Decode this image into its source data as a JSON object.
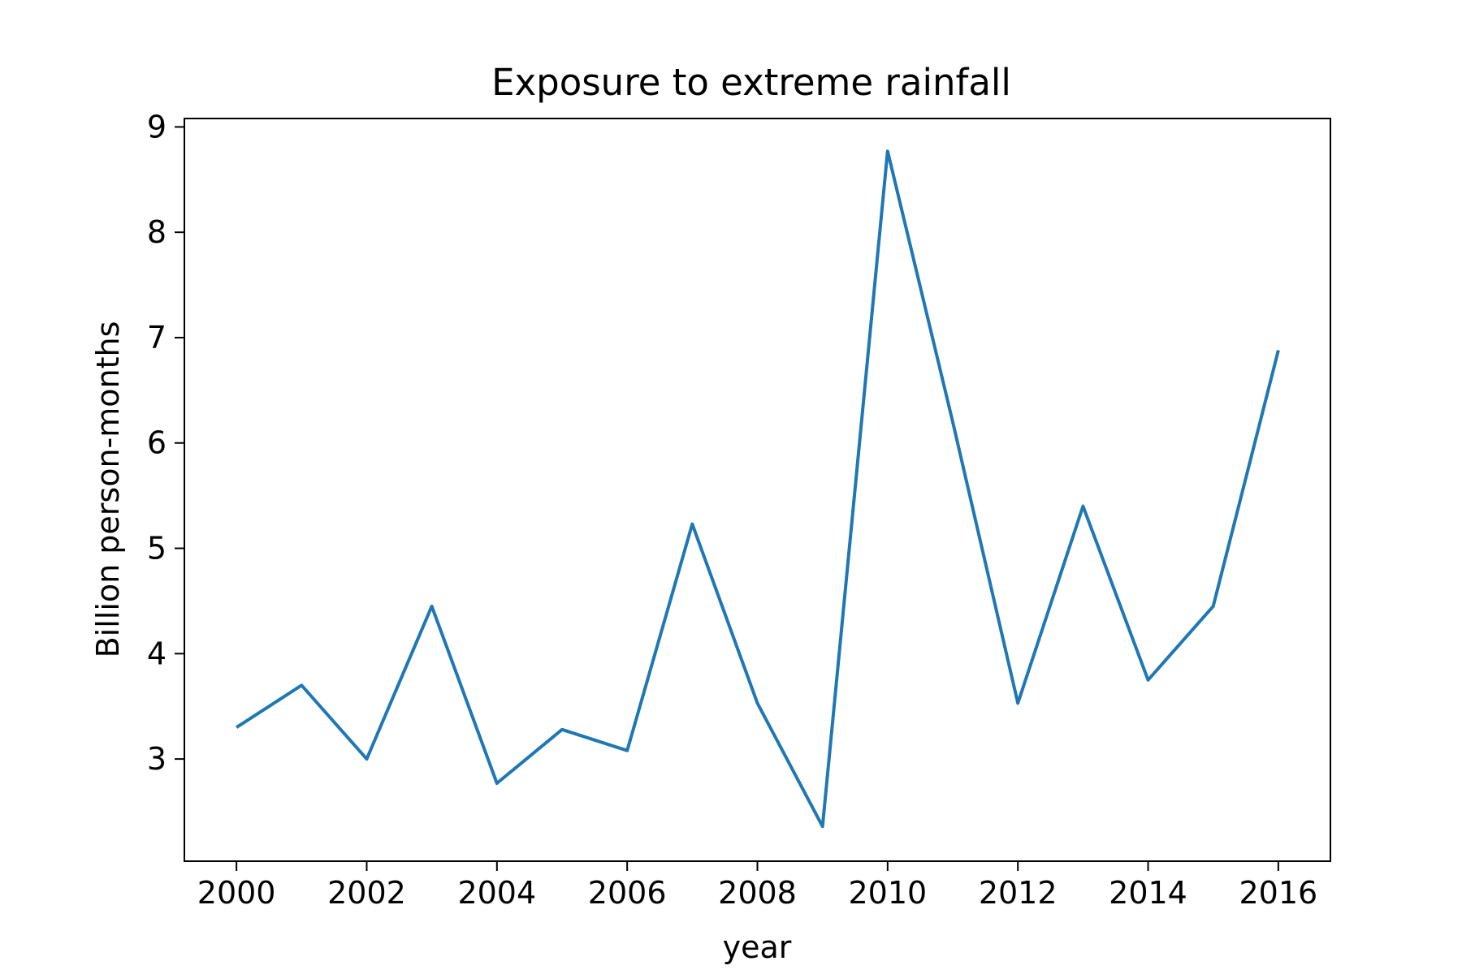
{
  "chart_data": {
    "type": "line",
    "title": "Exposure to extreme rainfall",
    "xlabel": "year",
    "ylabel": "Billion person-months",
    "x": [
      2000,
      2001,
      2002,
      2003,
      2004,
      2005,
      2006,
      2007,
      2008,
      2009,
      2010,
      2011,
      2012,
      2013,
      2014,
      2015,
      2016
    ],
    "series": [
      {
        "values": [
          3.3,
          3.7,
          3.0,
          4.45,
          2.77,
          3.28,
          3.08,
          5.23,
          3.53,
          2.36,
          8.77,
          6.2,
          3.53,
          5.4,
          3.75,
          4.45,
          6.88
        ],
        "color": "#1f77b4"
      }
    ],
    "xlim": [
      1999.2,
      2016.8
    ],
    "ylim": [
      2.03,
      9.08
    ],
    "xticks": [
      "2000",
      "2002",
      "2004",
      "2006",
      "2008",
      "2010",
      "2012",
      "2014",
      "2016"
    ],
    "yticks": [
      "3",
      "4",
      "5",
      "6",
      "7",
      "8",
      "9"
    ],
    "grid": false
  }
}
